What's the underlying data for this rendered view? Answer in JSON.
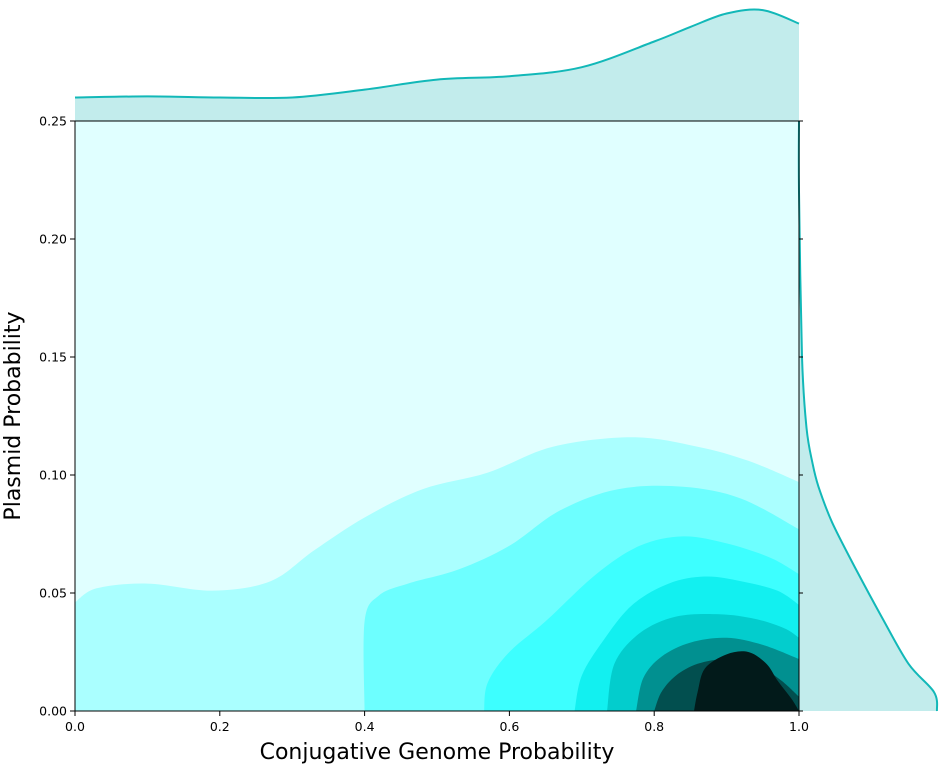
{
  "chart_data": {
    "type": "kde-joint",
    "xlabel": "Conjugative Genome Probability",
    "ylabel": "Plasmid Probability",
    "xlim": [
      0.0,
      1.0
    ],
    "ylim": [
      0.0,
      0.25
    ],
    "xticks": [
      "0.0",
      "0.2",
      "0.4",
      "0.6",
      "0.8",
      "1.0"
    ],
    "yticks": [
      "0.00",
      "0.05",
      "0.10",
      "0.15",
      "0.20",
      "0.25"
    ],
    "grid": false,
    "colors": {
      "marginal_line": "#12b8b8",
      "marginal_fill": "#c2ecec",
      "levels": [
        "#e0ffff",
        "#aaffff",
        "#6dffff",
        "#3dffff",
        "#12f0f0",
        "#03cdcd",
        "#019090",
        "#024f4f",
        "#021a1a"
      ]
    },
    "contours": [
      {
        "level": 1,
        "points": [
          [
            0.0,
            0.046
          ],
          [
            0.03,
            0.052
          ],
          [
            0.1,
            0.054
          ],
          [
            0.19,
            0.051
          ],
          [
            0.27,
            0.055
          ],
          [
            0.33,
            0.068
          ],
          [
            0.4,
            0.082
          ],
          [
            0.48,
            0.094
          ],
          [
            0.57,
            0.101
          ],
          [
            0.66,
            0.112
          ],
          [
            0.77,
            0.116
          ],
          [
            0.86,
            0.112
          ],
          [
            0.93,
            0.106
          ],
          [
            1.0,
            0.097
          ]
        ]
      },
      {
        "level": 2,
        "points": [
          [
            0.4,
            0.0
          ],
          [
            0.4,
            0.038
          ],
          [
            0.42,
            0.049
          ],
          [
            0.46,
            0.054
          ],
          [
            0.53,
            0.06
          ],
          [
            0.6,
            0.07
          ],
          [
            0.67,
            0.085
          ],
          [
            0.75,
            0.094
          ],
          [
            0.84,
            0.095
          ],
          [
            0.92,
            0.09
          ],
          [
            1.0,
            0.077
          ]
        ]
      },
      {
        "level": 3,
        "points": [
          [
            0.565,
            0.0
          ],
          [
            0.57,
            0.012
          ],
          [
            0.6,
            0.025
          ],
          [
            0.65,
            0.038
          ],
          [
            0.72,
            0.058
          ],
          [
            0.78,
            0.07
          ],
          [
            0.84,
            0.074
          ],
          [
            0.9,
            0.071
          ],
          [
            0.96,
            0.065
          ],
          [
            1.0,
            0.058
          ]
        ]
      },
      {
        "level": 4,
        "points": [
          [
            0.69,
            0.0
          ],
          [
            0.7,
            0.015
          ],
          [
            0.73,
            0.03
          ],
          [
            0.77,
            0.045
          ],
          [
            0.82,
            0.054
          ],
          [
            0.87,
            0.057
          ],
          [
            0.92,
            0.055
          ],
          [
            0.97,
            0.051
          ],
          [
            1.0,
            0.045
          ]
        ]
      },
      {
        "level": 5,
        "points": [
          [
            0.735,
            0.0
          ],
          [
            0.745,
            0.02
          ],
          [
            0.78,
            0.033
          ],
          [
            0.83,
            0.04
          ],
          [
            0.89,
            0.041
          ],
          [
            0.94,
            0.039
          ],
          [
            0.98,
            0.035
          ],
          [
            1.0,
            0.031
          ]
        ]
      },
      {
        "level": 6,
        "points": [
          [
            0.775,
            0.0
          ],
          [
            0.785,
            0.014
          ],
          [
            0.81,
            0.023
          ],
          [
            0.85,
            0.029
          ],
          [
            0.9,
            0.031
          ],
          [
            0.95,
            0.028
          ],
          [
            1.0,
            0.022
          ]
        ]
      },
      {
        "level": 7,
        "points": [
          [
            0.8,
            0.0
          ],
          [
            0.81,
            0.008
          ],
          [
            0.83,
            0.015
          ],
          [
            0.86,
            0.02
          ],
          [
            0.9,
            0.022
          ],
          [
            0.94,
            0.02
          ],
          [
            0.975,
            0.013
          ],
          [
            1.0,
            0.006
          ]
        ]
      },
      {
        "level": 8,
        "points": [
          [
            0.855,
            0.0
          ],
          [
            0.86,
            0.008
          ],
          [
            0.87,
            0.018
          ],
          [
            0.9,
            0.024
          ],
          [
            0.93,
            0.025
          ],
          [
            0.955,
            0.02
          ],
          [
            0.97,
            0.013
          ],
          [
            0.99,
            0.005
          ],
          [
            1.0,
            0.0
          ]
        ]
      }
    ],
    "marginal_x": {
      "x": [
        0.0,
        0.1,
        0.2,
        0.3,
        0.4,
        0.5,
        0.6,
        0.7,
        0.8,
        0.85,
        0.9,
        0.95,
        1.0
      ],
      "density": [
        0.21,
        0.22,
        0.21,
        0.21,
        0.28,
        0.37,
        0.4,
        0.48,
        0.71,
        0.84,
        0.96,
        0.99,
        0.87
      ]
    },
    "marginal_y": {
      "y": [
        0.25,
        0.22,
        0.15,
        0.12,
        0.105,
        0.095,
        0.08,
        0.06,
        0.04,
        0.02,
        0.008,
        0.0
      ],
      "density": [
        0.0,
        0.0,
        0.02,
        0.05,
        0.09,
        0.13,
        0.22,
        0.38,
        0.55,
        0.73,
        0.9,
        0.92
      ]
    }
  }
}
